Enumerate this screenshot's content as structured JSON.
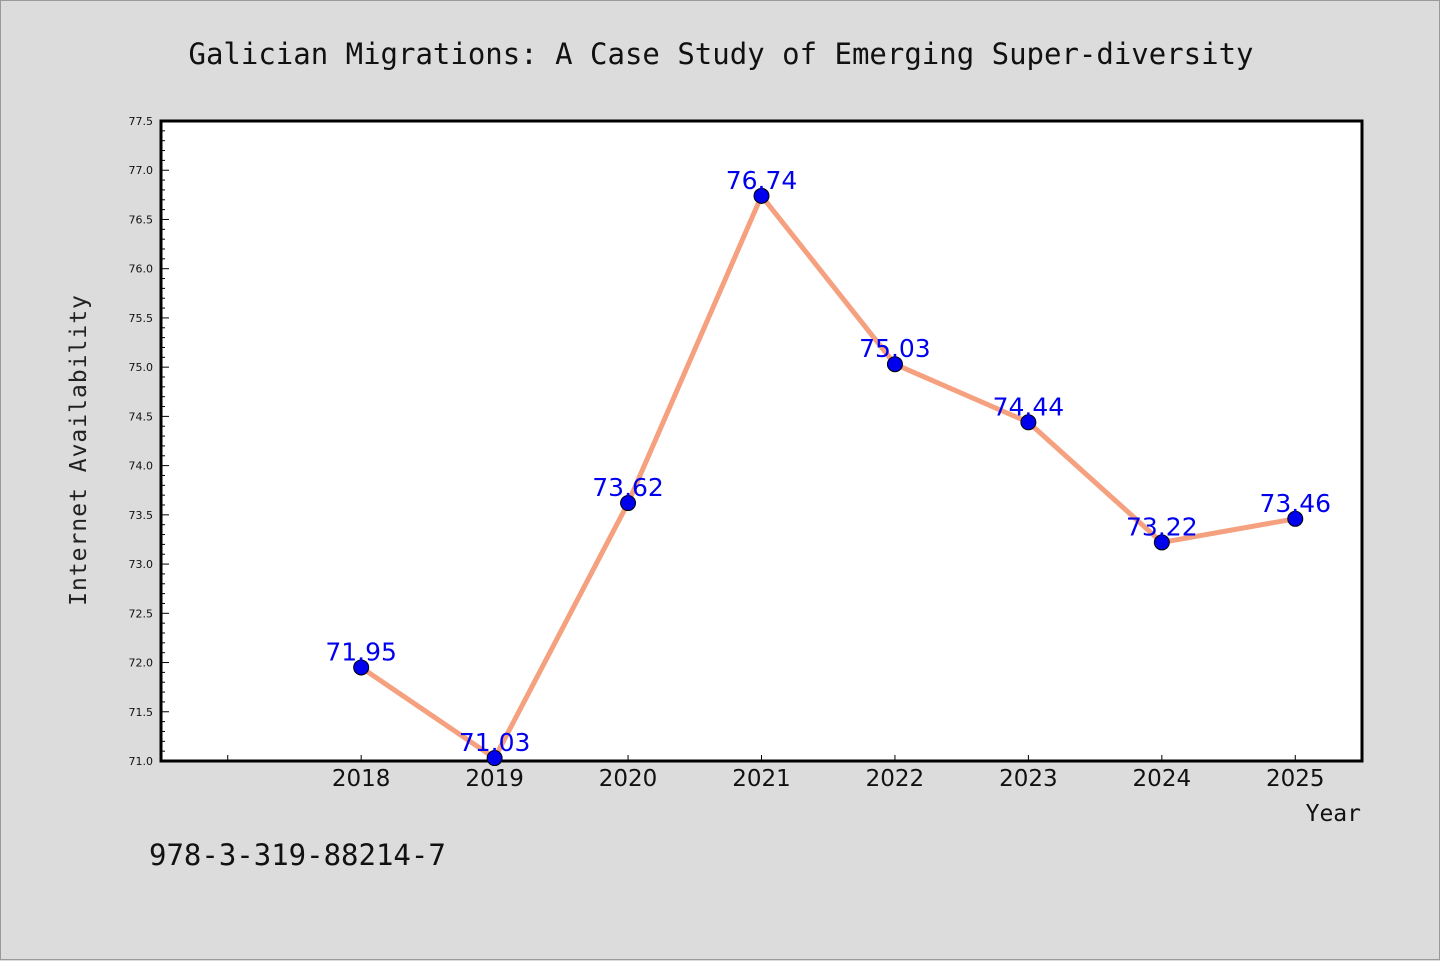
{
  "chart_data": {
    "type": "line",
    "title": "Galician Migrations: A Case Study of Emerging Super-diversity",
    "xlabel": "Year",
    "ylabel": "Internet Availability",
    "x": [
      2018,
      2019,
      2020,
      2021,
      2022,
      2023,
      2024,
      2025
    ],
    "x_tick_labels": [
      "2018",
      "2019",
      "2020",
      "2021",
      "2022",
      "2023",
      "2024",
      "2025"
    ],
    "xlim": [
      2016.5,
      2025.5
    ],
    "ylim": [
      71.0,
      77.5
    ],
    "y_ticks": [
      "71.0",
      "71.5",
      "72.0",
      "72.5",
      "73.0",
      "73.5",
      "74.0",
      "74.5",
      "75.0",
      "75.5",
      "76.0",
      "76.5",
      "77.0",
      "77.5"
    ],
    "series": [
      {
        "values": [
          71.95,
          71.03,
          73.62,
          76.74,
          75.03,
          74.44,
          73.22,
          73.46
        ],
        "data_labels": [
          "71.95",
          "71.03",
          "73.62",
          "76.74",
          "75.03",
          "74.44",
          "73.22",
          "73.46"
        ],
        "line_color": "#f5a07e",
        "marker_color": "#0000ee"
      }
    ],
    "grid": false,
    "legend": "none",
    "background": "#dcdcdc",
    "plot_background": "#ffffff"
  },
  "footer": {
    "isbn": "978-3-319-88214-7"
  }
}
